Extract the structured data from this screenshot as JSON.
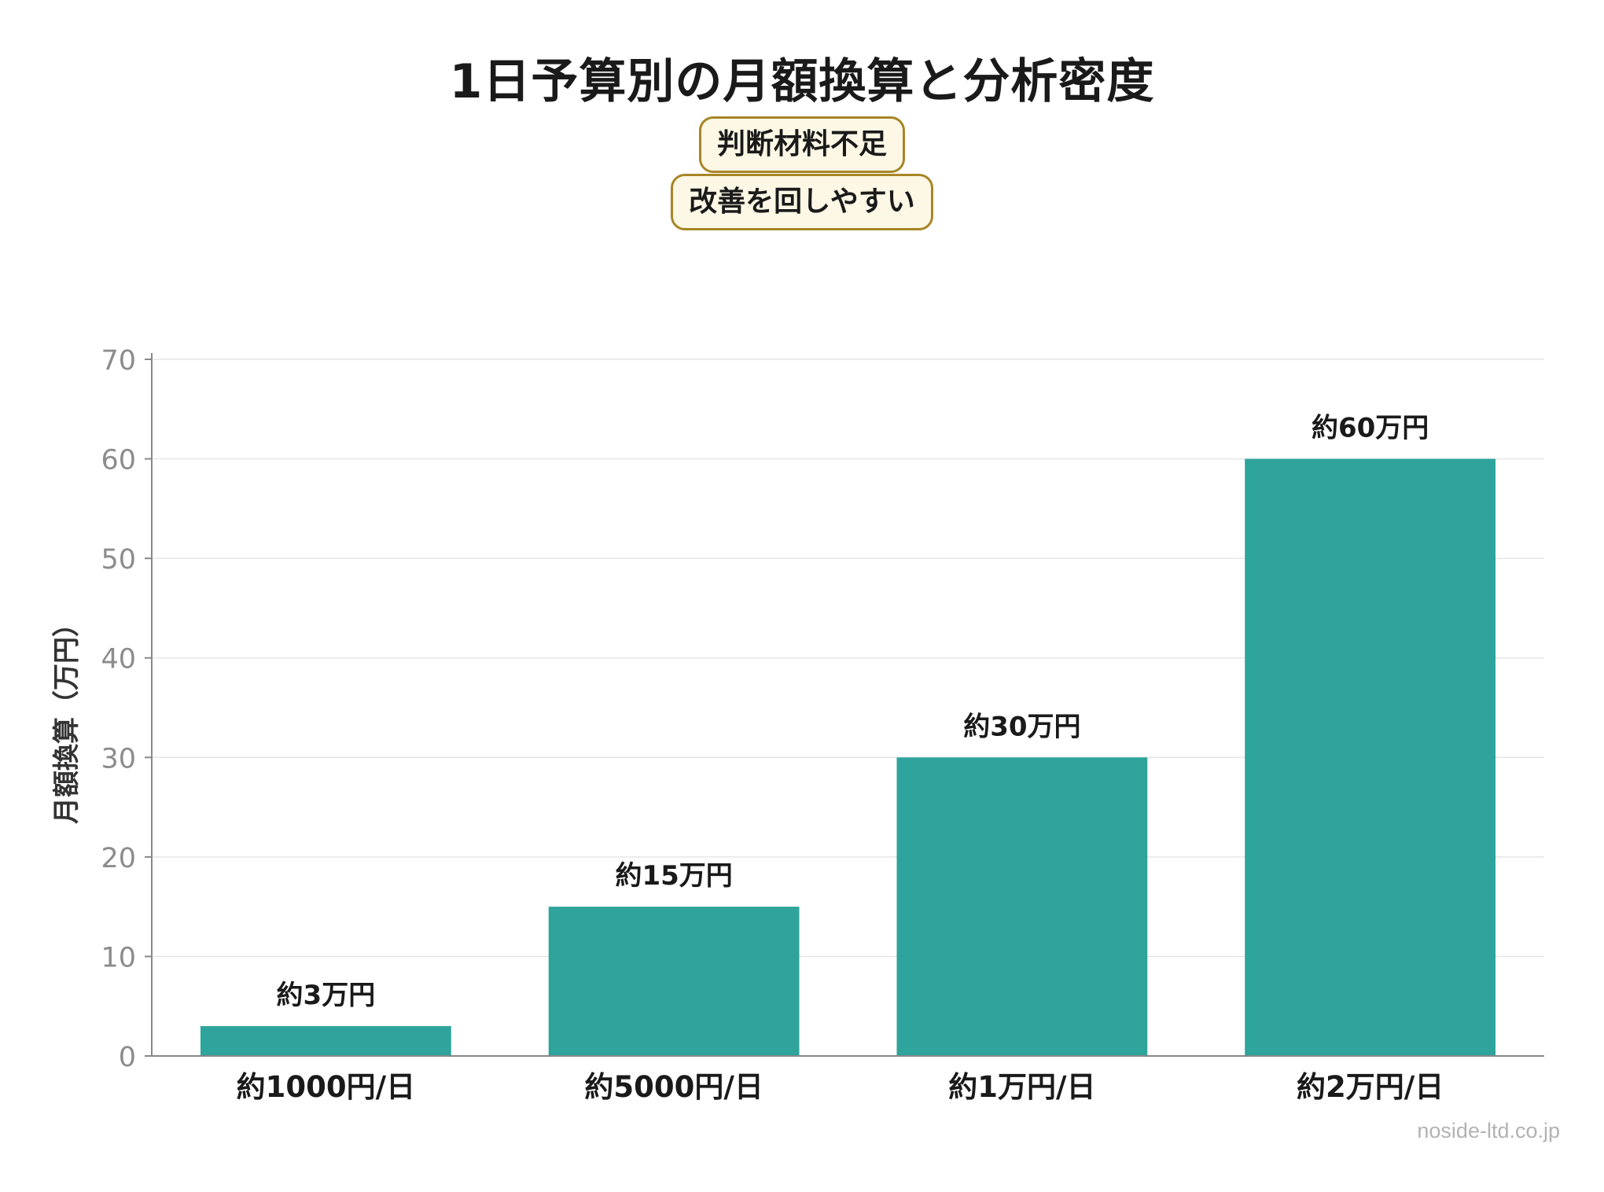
{
  "chart_data": {
    "type": "bar",
    "title": "1日予算別の月額換算と分析密度",
    "annotations": [
      "判断材料不足",
      "改善を回しやすい"
    ],
    "categories": [
      "約1000円/日",
      "約5000円/日",
      "約1万円/日",
      "約2万円/日"
    ],
    "values": [
      3,
      15,
      30,
      60
    ],
    "data_labels": [
      "約3万円",
      "約15万円",
      "約30万円",
      "約60万円"
    ],
    "xlabel": "",
    "ylabel": "月額換算（万円）",
    "ylim": [
      0,
      70
    ],
    "yticks": [
      "0",
      "10",
      "20",
      "30",
      "40",
      "50",
      "60",
      "70"
    ],
    "ytick_values": [
      0,
      10,
      20,
      30,
      40,
      50,
      60,
      70
    ],
    "grid": true,
    "colors": {
      "bar": "#2ea49c",
      "grid": "#e6e6e6",
      "axis": "#888888",
      "tick_label": "#8c8c8c",
      "callout_fill": "#fdf8e6",
      "callout_border": "#a88526"
    }
  },
  "watermark": "noside-ltd.co.jp"
}
